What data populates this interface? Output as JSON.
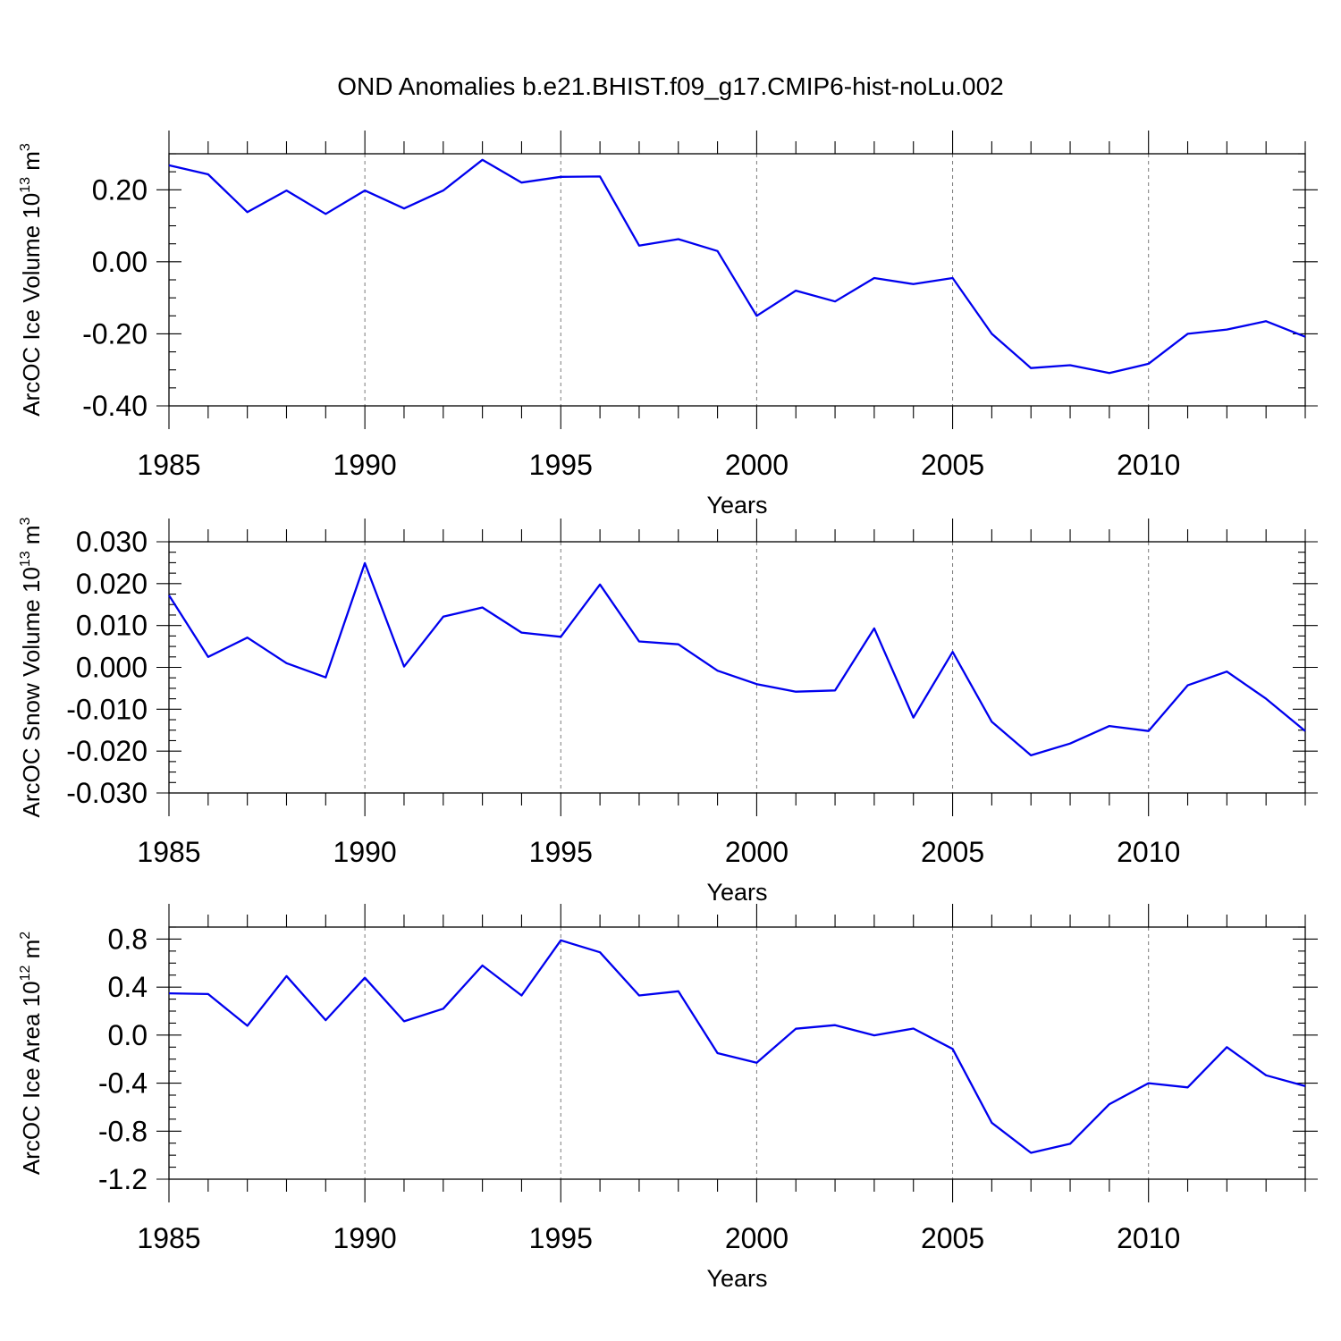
{
  "title": "OND Anomalies b.e21.BHIST.f09_g17.CMIP6-hist-noLu.002",
  "colors": {
    "line": "#0000ee",
    "grid": "#7a7a7a",
    "axis": "#000000"
  },
  "chart_data": [
    {
      "type": "line",
      "ylabel": "ArcOC Ice Volume 10",
      "ylabel_exp": "13",
      "ylabel_unit": " m",
      "ylabel_unit_exp": "3",
      "xlabel": "Years",
      "xlim": [
        1985,
        2014
      ],
      "ylim": [
        -0.4,
        0.3
      ],
      "x_ticks": [
        1985,
        1990,
        1995,
        2000,
        2005,
        2010
      ],
      "x_tick_labels": [
        "1985",
        "1990",
        "1995",
        "2000",
        "2005",
        "2010"
      ],
      "y_ticks": [
        -0.4,
        -0.2,
        0.0,
        0.2
      ],
      "y_tick_labels": [
        "-0.40",
        "-0.20",
        "0.00",
        "0.20"
      ],
      "y_minor_step": 0.05,
      "grid_x": true,
      "x": [
        1985,
        1986,
        1987,
        1988,
        1989,
        1990,
        1991,
        1992,
        1993,
        1994,
        1995,
        1996,
        1997,
        1998,
        1999,
        2000,
        2001,
        2002,
        2003,
        2004,
        2005,
        2006,
        2007,
        2008,
        2009,
        2010,
        2011,
        2012,
        2013,
        2014
      ],
      "y": [
        0.268,
        0.243,
        0.138,
        0.198,
        0.133,
        0.198,
        0.148,
        0.198,
        0.283,
        0.22,
        0.236,
        0.237,
        0.045,
        0.063,
        0.03,
        -0.15,
        -0.08,
        -0.11,
        -0.045,
        -0.062,
        -0.045,
        -0.2,
        -0.295,
        -0.287,
        -0.309,
        -0.283,
        -0.2,
        -0.188,
        -0.165,
        -0.208
      ]
    },
    {
      "type": "line",
      "ylabel": "ArcOC Snow Volume 10",
      "ylabel_exp": "13",
      "ylabel_unit": " m",
      "ylabel_unit_exp": "3",
      "xlabel": "Years",
      "xlim": [
        1985,
        2014
      ],
      "ylim": [
        -0.03,
        0.03
      ],
      "x_ticks": [
        1985,
        1990,
        1995,
        2000,
        2005,
        2010
      ],
      "x_tick_labels": [
        "1985",
        "1990",
        "1995",
        "2000",
        "2005",
        "2010"
      ],
      "y_ticks": [
        -0.03,
        -0.02,
        -0.01,
        0.0,
        0.01,
        0.02,
        0.03
      ],
      "y_tick_labels": [
        "-0.030",
        "-0.020",
        "-0.010",
        "0.000",
        "0.010",
        "0.020",
        "0.030"
      ],
      "y_minor_step": 0.0025,
      "grid_x": true,
      "x": [
        1985,
        1986,
        1987,
        1988,
        1989,
        1990,
        1991,
        1992,
        1993,
        1994,
        1995,
        1996,
        1997,
        1998,
        1999,
        2000,
        2001,
        2002,
        2003,
        2004,
        2005,
        2006,
        2007,
        2008,
        2009,
        2010,
        2011,
        2012,
        2013,
        2014
      ],
      "y": [
        0.0172,
        0.0025,
        0.0071,
        0.001,
        -0.0024,
        0.0249,
        0.0002,
        0.0121,
        0.0143,
        0.0083,
        0.0073,
        0.0198,
        0.0062,
        0.0055,
        -0.0008,
        -0.004,
        -0.0058,
        -0.0055,
        0.0093,
        -0.012,
        0.0037,
        -0.013,
        -0.021,
        -0.0182,
        -0.014,
        -0.0152,
        -0.0043,
        -0.001,
        -0.0075,
        -0.0152
      ]
    },
    {
      "type": "line",
      "ylabel": "ArcOC Ice Area 10",
      "ylabel_exp": "12",
      "ylabel_unit": " m",
      "ylabel_unit_exp": "2",
      "xlabel": "Years",
      "xlim": [
        1985,
        2014
      ],
      "ylim": [
        -1.2,
        0.9
      ],
      "x_ticks": [
        1985,
        1990,
        1995,
        2000,
        2005,
        2010
      ],
      "x_tick_labels": [
        "1985",
        "1990",
        "1995",
        "2000",
        "2005",
        "2010"
      ],
      "y_ticks": [
        -1.2,
        -0.8,
        -0.4,
        0.0,
        0.4,
        0.8
      ],
      "y_tick_labels": [
        "-1.2",
        "-0.8",
        "-0.4",
        "0.0",
        "0.4",
        "0.8"
      ],
      "y_minor_step": 0.1,
      "grid_x": true,
      "x": [
        1985,
        1986,
        1987,
        1988,
        1989,
        1990,
        1991,
        1992,
        1993,
        1994,
        1995,
        1996,
        1997,
        1998,
        1999,
        2000,
        2001,
        2002,
        2003,
        2004,
        2005,
        2006,
        2007,
        2008,
        2009,
        2010,
        2011,
        2012,
        2013,
        2014
      ],
      "y": [
        0.348,
        0.342,
        0.078,
        0.492,
        0.125,
        0.478,
        0.115,
        0.22,
        0.58,
        0.33,
        0.79,
        0.69,
        0.33,
        0.365,
        -0.15,
        -0.23,
        0.053,
        0.083,
        -0.002,
        0.055,
        -0.115,
        -0.73,
        -0.98,
        -0.905,
        -0.575,
        -0.4,
        -0.435,
        -0.1,
        -0.335,
        -0.425
      ]
    }
  ]
}
